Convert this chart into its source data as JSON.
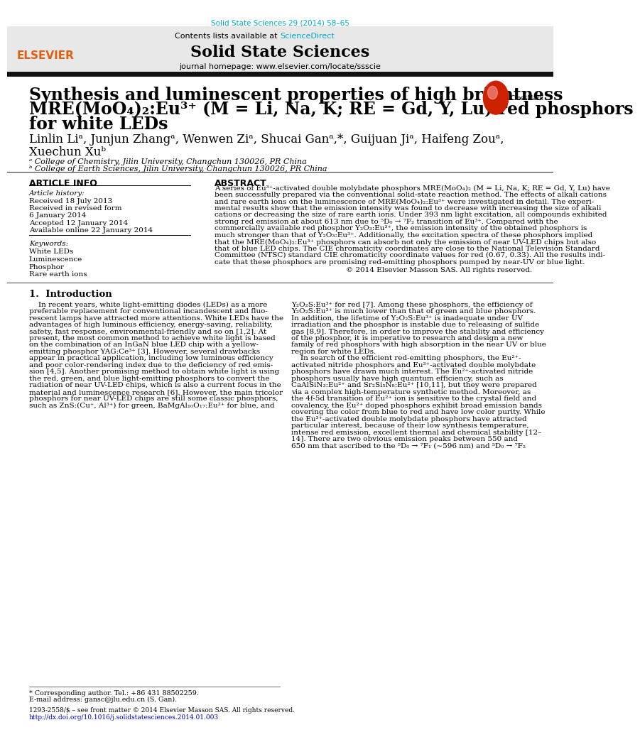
{
  "page_width": 9.92,
  "page_height": 13.23,
  "bg_color": "#ffffff",
  "top_journal_text": "Solid State Sciences 29 (2014) 58–65",
  "top_journal_color": "#00aacc",
  "header_bg": "#e8e8e8",
  "header_contents_text": "Contents lists available at ",
  "header_sciencedirect": "ScienceDirect",
  "header_sciencedirect_color": "#00aacc",
  "header_journal_title": "Solid State Sciences",
  "header_homepage_text": "journal homepage: www.elsevier.com/locate/ssscie",
  "thick_bar_color": "#111111",
  "article_title_line1": "Synthesis and luminescent properties of high brightness",
  "article_title_line2": "MRE(MoO₄)₂:Eu³⁺ (M = Li, Na, K; RE = Gd, Y, Lu) red phosphors",
  "article_title_line3": "for white LEDs",
  "article_title_fontsize": 17,
  "authors_line1": "Linlin Liᵃ, Junjun Zhangᵃ, Wenwen Ziᵃ, Shucai Ganᵃ,*, Guijuan Jiᵃ, Haifeng Zouᵃ,",
  "authors_line2": "Xuechun Xuᵇ",
  "authors_fontsize": 12,
  "authors_color": "#000000",
  "affil_a": "ᵃ College of Chemistry, Jilin University, Changchun 130026, PR China",
  "affil_b": "ᵇ College of Earth Sciences, Jilin University, Changchun 130026, PR China",
  "affil_fontsize": 8,
  "article_info_header": "ARTICLE INFO",
  "abstract_header": "ABSTRACT",
  "section_header_fontsize": 9,
  "article_history_label": "Article history:",
  "received_date": "Received 18 July 2013",
  "revised_form": "Received in revised form",
  "revised_date": "6 January 2014",
  "accepted_date": "Accepted 12 January 2014",
  "online_date": "Available online 22 January 2014",
  "keywords_label": "Keywords:",
  "keywords": [
    "White LEDs",
    "Luminescence",
    "Phosphor",
    "Rare earth ions"
  ],
  "copyright_text": "© 2014 Elsevier Masson SAS. All rights reserved.",
  "intro_header": "1.  Introduction",
  "footnote_corresponding": "* Corresponding author. Tel.: +86 431 88502259.",
  "footnote_email": "E-mail address: gansc@jlu.edu.cn (S. Gan).",
  "footnote_issn": "1293-2558/$ – see front matter © 2014 Elsevier Masson SAS. All rights reserved.",
  "footnote_doi": "http://dx.doi.org/10.1016/j.solidstatesciences.2014.01.003",
  "footnote_doi_color": "#0000cc",
  "text_fontsize": 7.5,
  "small_fontsize": 7.0,
  "body_text_color": "#000000",
  "link_color": "#00aacc"
}
